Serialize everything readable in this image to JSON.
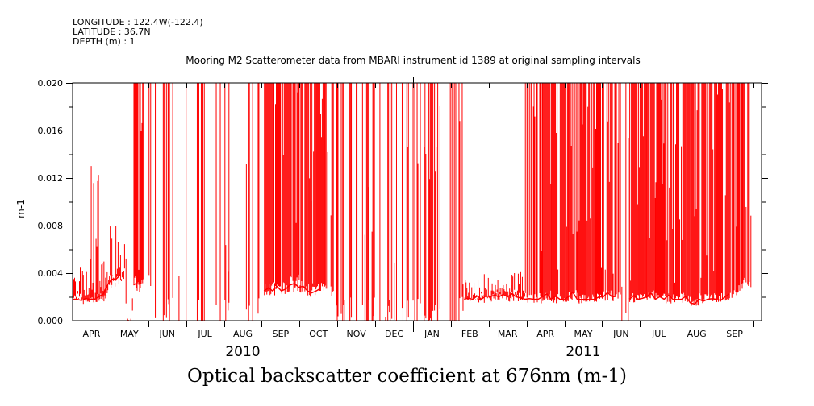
{
  "header": {
    "longitude": "LONGITUDE : 122.4W(-122.4)",
    "latitude": "LATITUDE : 36.7N",
    "depth": "DEPTH (m) : 1"
  },
  "chart_data": {
    "type": "line",
    "title": "Mooring M2 Scatterometer data from MBARI instrument id 1389 at original sampling intervals",
    "xlabel": "Optical backscatter coefficient at 676nm (m-1)",
    "ylabel": "m-1",
    "ylim": [
      0.0,
      0.02
    ],
    "yticks": [
      "0.000",
      "0.004",
      "0.008",
      "0.012",
      "0.016",
      "0.020"
    ],
    "ytick_values": [
      0.0,
      0.004,
      0.008,
      0.012,
      0.016,
      0.02
    ],
    "x_range": [
      "2010-04-01",
      "2011-10-01"
    ],
    "month_labels": [
      "APR",
      "MAY",
      "JUN",
      "JUL",
      "AUG",
      "SEP",
      "OCT",
      "NOV",
      "DEC",
      "JAN",
      "FEB",
      "MAR",
      "APR",
      "MAY",
      "JUN",
      "JUL",
      "AUG",
      "SEP"
    ],
    "year_labels": [
      {
        "label": "2010",
        "month_index": 4.5
      },
      {
        "label": "2011",
        "month_index": 13.5
      }
    ],
    "grid": false,
    "series": [
      {
        "name": "Optical backscatter coefficient at 676nm",
        "color": "#ff0000",
        "x_unit": "week since 2010-04-01",
        "weekly_low": [
          0.0018,
          0.0017,
          0.0018,
          0.002,
          0.003,
          0.0035,
          0.0,
          0.003,
          0.003,
          0.0,
          0.0,
          0.0,
          0.0,
          0.0,
          0.0,
          0.0,
          0.0,
          0.0,
          0.0,
          0.0,
          0.0,
          0.0,
          0.0025,
          0.0025,
          0.0025,
          0.003,
          0.0028,
          0.0025,
          0.0025,
          0.0025,
          0.0,
          0.0,
          0.0,
          0.0,
          0.0,
          0.0,
          0.0,
          0.0,
          0.0,
          0.0,
          0.0,
          0.0,
          0.0,
          0.0,
          0.0,
          0.0018,
          0.0018,
          0.0018,
          0.002,
          0.002,
          0.002,
          0.002,
          0.0018,
          0.0018,
          0.002,
          0.0018,
          0.0018,
          0.002,
          0.0018,
          0.0018,
          0.0018,
          0.002,
          0.002,
          0.0,
          0.0018,
          0.0018,
          0.002,
          0.0018,
          0.0018,
          0.0018,
          0.0018,
          0.0015,
          0.0018,
          0.0018,
          0.0018,
          0.002,
          0.0025,
          0.003
        ],
        "weekly_high": [
          0.005,
          0.0045,
          0.0145,
          0.0055,
          0.008,
          0.007,
          0.009,
          0.02,
          0.02,
          0.02,
          0.02,
          0.02,
          0.01,
          0.02,
          0.02,
          0.02,
          0.02,
          0.02,
          0.02,
          0.02,
          0.02,
          0.02,
          0.02,
          0.02,
          0.02,
          0.02,
          0.02,
          0.02,
          0.02,
          0.02,
          0.02,
          0.02,
          0.02,
          0.02,
          0.02,
          0.02,
          0.02,
          0.02,
          0.02,
          0.02,
          0.02,
          0.02,
          0.02,
          0.02,
          0.02,
          0.004,
          0.0035,
          0.004,
          0.0035,
          0.0035,
          0.004,
          0.0045,
          0.02,
          0.02,
          0.02,
          0.02,
          0.02,
          0.02,
          0.02,
          0.02,
          0.02,
          0.02,
          0.02,
          0.02,
          0.02,
          0.02,
          0.02,
          0.02,
          0.02,
          0.02,
          0.02,
          0.02,
          0.02,
          0.02,
          0.02,
          0.02,
          0.02,
          0.02
        ],
        "weekly_density": [
          1,
          1,
          1,
          1,
          1,
          1,
          0.3,
          1,
          0.6,
          0.3,
          0.4,
          0.2,
          0.1,
          0.1,
          0.2,
          0.15,
          0.2,
          0.1,
          0.15,
          0.2,
          0.3,
          0.3,
          0.9,
          0.9,
          0.95,
          0.95,
          0.9,
          0.9,
          0.9,
          0.7,
          0.4,
          0.5,
          0.4,
          0.45,
          0.4,
          0.5,
          0.45,
          0.4,
          0.3,
          0.5,
          0.4,
          0.5,
          0.3,
          0.4,
          0.3,
          1,
          1,
          1,
          1,
          1,
          1,
          1,
          0.85,
          0.9,
          0.9,
          0.95,
          0.9,
          0.9,
          0.95,
          0.9,
          0.95,
          0.9,
          0.85,
          0.3,
          0.9,
          0.95,
          0.9,
          0.9,
          0.95,
          0.9,
          0.85,
          0.9,
          0.9,
          0.95,
          0.9,
          0.85,
          0.6,
          0.6
        ]
      }
    ]
  }
}
